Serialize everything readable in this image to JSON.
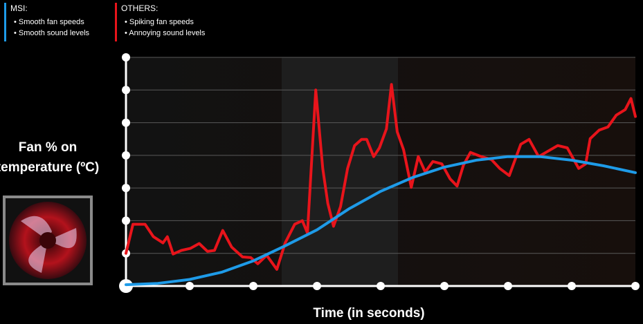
{
  "chart_data": {
    "type": "line",
    "xlabel": "Time (in seconds)",
    "ylabel": [
      "Fan % on",
      "temperature (ºC)"
    ],
    "xlim": [
      0,
      8
    ],
    "xticks": [
      0,
      1,
      2,
      3,
      4,
      5,
      6,
      7,
      8
    ],
    "ylim": [
      0,
      7
    ],
    "yticks": [
      0,
      1,
      2,
      3,
      4,
      5,
      6,
      7
    ],
    "grid": true,
    "series": [
      {
        "name": "MSI:",
        "color": "#1e9be8",
        "notes": [
          "• Smooth fan speeds",
          "• Smooth sound levels"
        ],
        "x": [
          0,
          0.5,
          1,
          1.5,
          2,
          2.5,
          3,
          3.5,
          4,
          4.5,
          5,
          5.5,
          6,
          6.5,
          7,
          7.5,
          8
        ],
        "values": [
          0.04,
          0.08,
          0.2,
          0.42,
          0.77,
          1.23,
          1.72,
          2.36,
          2.9,
          3.32,
          3.64,
          3.85,
          3.96,
          3.96,
          3.85,
          3.68,
          3.47
        ]
      },
      {
        "name": "OTHERS:",
        "color": "#e8141b",
        "notes": [
          "• Spiking fan speeds",
          "• Annoying sound levels"
        ],
        "x": [
          0,
          0.11,
          0.3,
          0.43,
          0.58,
          0.65,
          0.74,
          0.87,
          1.01,
          1.15,
          1.28,
          1.39,
          1.52,
          1.66,
          1.83,
          1.96,
          2.07,
          2.21,
          2.37,
          2.5,
          2.65,
          2.77,
          2.85,
          2.98,
          3.09,
          3.17,
          3.26,
          3.37,
          3.48,
          3.59,
          3.7,
          3.78,
          3.89,
          3.98,
          4.09,
          4.17,
          4.26,
          4.36,
          4.48,
          4.59,
          4.7,
          4.82,
          4.96,
          5.09,
          5.2,
          5.3,
          5.41,
          5.58,
          5.74,
          5.87,
          6.02,
          6.2,
          6.33,
          6.48,
          6.63,
          6.78,
          6.93,
          7.11,
          7.22,
          7.29,
          7.43,
          7.57,
          7.7,
          7.84,
          7.93,
          8.0
        ],
        "values": [
          1.0,
          1.89,
          1.89,
          1.51,
          1.32,
          1.51,
          0.98,
          1.09,
          1.15,
          1.3,
          1.06,
          1.09,
          1.7,
          1.19,
          0.89,
          0.87,
          0.68,
          0.94,
          0.51,
          1.32,
          1.89,
          2.0,
          1.62,
          6.0,
          3.6,
          2.53,
          1.83,
          2.43,
          3.6,
          4.3,
          4.49,
          4.49,
          3.96,
          4.23,
          4.81,
          6.17,
          4.72,
          4.17,
          3.02,
          3.96,
          3.49,
          3.81,
          3.74,
          3.28,
          3.06,
          3.7,
          4.09,
          3.96,
          3.87,
          3.6,
          3.38,
          4.34,
          4.49,
          3.96,
          4.13,
          4.3,
          4.23,
          3.6,
          3.74,
          4.51,
          4.77,
          4.87,
          5.23,
          5.4,
          5.74,
          5.19
        ]
      }
    ]
  }
}
